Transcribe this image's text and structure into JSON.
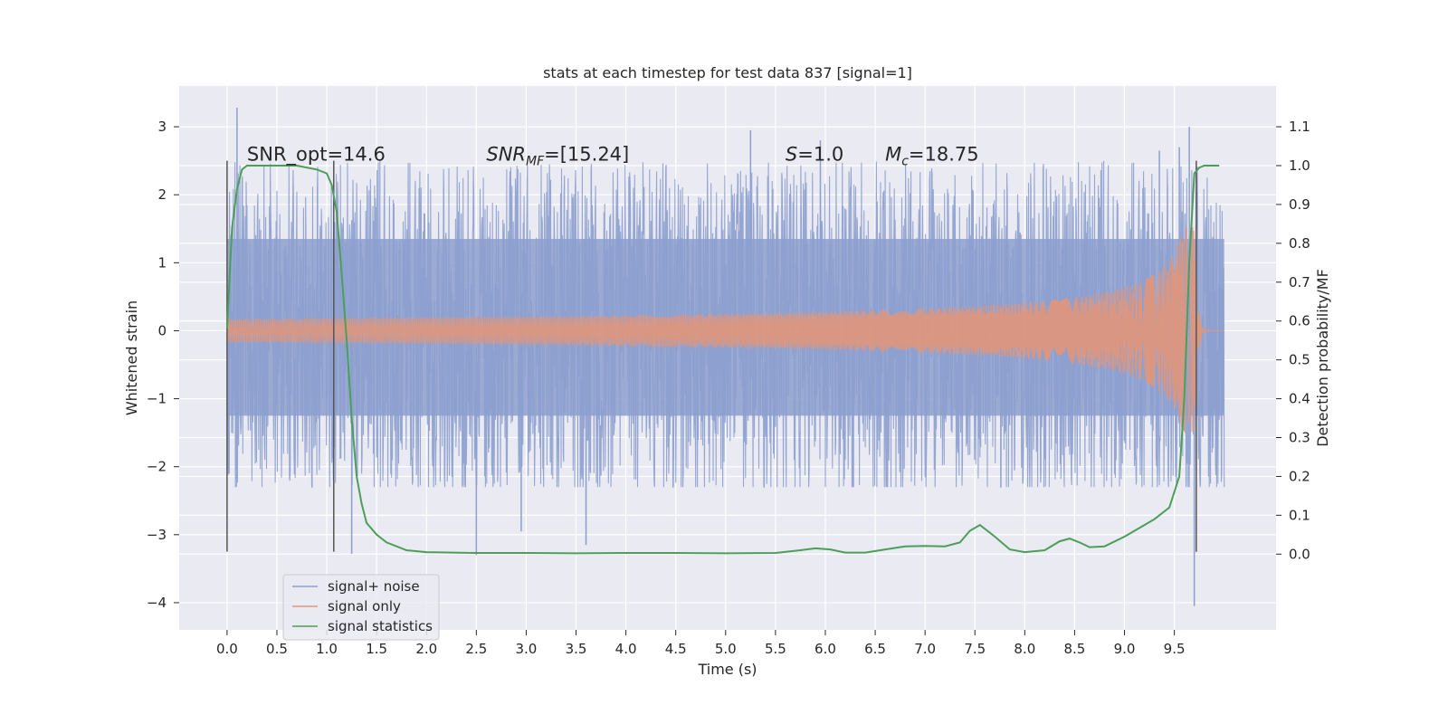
{
  "chart_data": {
    "type": "line",
    "title": "stats at each timestep for test data 837 [signal=1]",
    "xlabel": "Time (s)",
    "ylabel": "Whitened strain",
    "y2label": "Detection probability/MF",
    "xlim": [
      -0.48,
      10.52
    ],
    "ylim": [
      -4.4,
      3.6
    ],
    "y2lim": [
      -0.195,
      1.205
    ],
    "x_ticks": [
      0.0,
      0.5,
      1.0,
      1.5,
      2.0,
      2.5,
      3.0,
      3.5,
      4.0,
      4.5,
      5.0,
      5.5,
      6.0,
      6.5,
      7.0,
      7.5,
      8.0,
      8.5,
      9.0,
      9.5
    ],
    "x_tick_labels": [
      "0.0",
      "0.5",
      "1.0",
      "1.5",
      "2.0",
      "2.5",
      "3.0",
      "3.5",
      "4.0",
      "4.5",
      "5.0",
      "5.5",
      "6.0",
      "6.5",
      "7.0",
      "7.5",
      "8.0",
      "8.5",
      "9.0",
      "9.5"
    ],
    "y_ticks": [
      -4,
      -3,
      -2,
      -1,
      0,
      1,
      2,
      3
    ],
    "y_tick_labels": [
      "−4",
      "−3",
      "−2",
      "−1",
      "0",
      "1",
      "2",
      "3"
    ],
    "y2_ticks": [
      0.0,
      0.1,
      0.2,
      0.3,
      0.4,
      0.5,
      0.6,
      0.7,
      0.8,
      0.9,
      1.0,
      1.1
    ],
    "y2_tick_labels": [
      "0.0",
      "0.1",
      "0.2",
      "0.3",
      "0.4",
      "0.5",
      "0.6",
      "0.7",
      "0.8",
      "0.9",
      "1.0",
      "1.1"
    ],
    "grid": true,
    "legend_position": "lower-left",
    "series": [
      {
        "name": "signal+ noise",
        "color": "#8c9fce",
        "kind": "noise",
        "x_range": [
          0.0,
          10.0
        ],
        "envelope": {
          "core": 1.0,
          "spike_max": 2.5,
          "spike_min": -2.3
        },
        "outliers": [
          {
            "x": 0.1,
            "y": 3.28
          },
          {
            "x": 0.02,
            "y": -2.1
          },
          {
            "x": 1.25,
            "y": -3.28
          },
          {
            "x": 2.5,
            "y": -3.3
          },
          {
            "x": 3.6,
            "y": -3.15
          },
          {
            "x": 5.25,
            "y": 2.95
          },
          {
            "x": 5.95,
            "y": 2.8
          },
          {
            "x": 9.55,
            "y": 2.7
          },
          {
            "x": 9.65,
            "y": 3.0
          },
          {
            "x": 9.7,
            "y": -4.05
          },
          {
            "x": 9.35,
            "y": 2.65
          },
          {
            "x": 2.95,
            "y": -2.95
          }
        ]
      },
      {
        "name": "signal only",
        "color": "#e1967a",
        "kind": "chirp",
        "x_range": [
          0.0,
          10.0
        ],
        "merger_time": 9.72,
        "peak_amplitude": 1.6
      },
      {
        "name": "signal statistics",
        "color": "#4c9e58",
        "kind": "line",
        "axis": "right",
        "x": [
          0.0,
          0.05,
          0.1,
          0.15,
          0.2,
          0.3,
          0.5,
          0.7,
          0.9,
          1.0,
          1.05,
          1.1,
          1.15,
          1.2,
          1.25,
          1.3,
          1.35,
          1.4,
          1.5,
          1.6,
          1.7,
          1.8,
          2.0,
          2.5,
          3.0,
          3.5,
          4.0,
          4.5,
          5.0,
          5.5,
          5.75,
          5.9,
          6.05,
          6.2,
          6.4,
          6.6,
          6.8,
          7.0,
          7.2,
          7.35,
          7.45,
          7.55,
          7.7,
          7.85,
          8.0,
          8.2,
          8.35,
          8.45,
          8.55,
          8.65,
          8.8,
          9.0,
          9.2,
          9.3,
          9.45,
          9.55,
          9.6,
          9.65,
          9.7,
          9.75,
          9.8,
          9.85,
          9.9,
          9.95
        ],
        "values": [
          0.58,
          0.84,
          0.94,
          0.99,
          1.0,
          1.0,
          1.0,
          1.0,
          0.99,
          0.98,
          0.95,
          0.88,
          0.72,
          0.55,
          0.35,
          0.2,
          0.13,
          0.08,
          0.05,
          0.03,
          0.02,
          0.01,
          0.005,
          0.003,
          0.003,
          0.002,
          0.003,
          0.003,
          0.002,
          0.003,
          0.01,
          0.015,
          0.012,
          0.004,
          0.004,
          0.012,
          0.02,
          0.021,
          0.02,
          0.03,
          0.06,
          0.075,
          0.045,
          0.012,
          0.005,
          0.01,
          0.033,
          0.04,
          0.03,
          0.018,
          0.02,
          0.045,
          0.075,
          0.09,
          0.12,
          0.2,
          0.4,
          0.75,
          0.98,
          0.995,
          1.0,
          1.0,
          1.0,
          1.0
        ]
      }
    ],
    "vertical_lines": [
      {
        "x": 0.0,
        "y_from": -3.25,
        "y_to": 2.5
      },
      {
        "x": 1.07,
        "y_from": -3.25,
        "y_to": 2.5
      },
      {
        "x": 9.72,
        "y_from": -3.25,
        "y_to": 2.5
      }
    ],
    "annotations": [
      {
        "id": "snr-opt",
        "text": "SNR_opt=14.6",
        "x": 0.2,
        "y": 2.5
      },
      {
        "id": "snr-mf",
        "text": "=[15.24]",
        "label_main": "SNR",
        "label_sub": "MF",
        "x": 2.6,
        "y": 2.5
      },
      {
        "id": "s-stat",
        "text": "=1.0",
        "label_main": "S",
        "x": 5.6,
        "y": 2.5
      },
      {
        "id": "chirp-mass",
        "text": "=18.75",
        "label_main": "M",
        "label_sub": "c",
        "x": 6.6,
        "y": 2.5
      }
    ]
  }
}
